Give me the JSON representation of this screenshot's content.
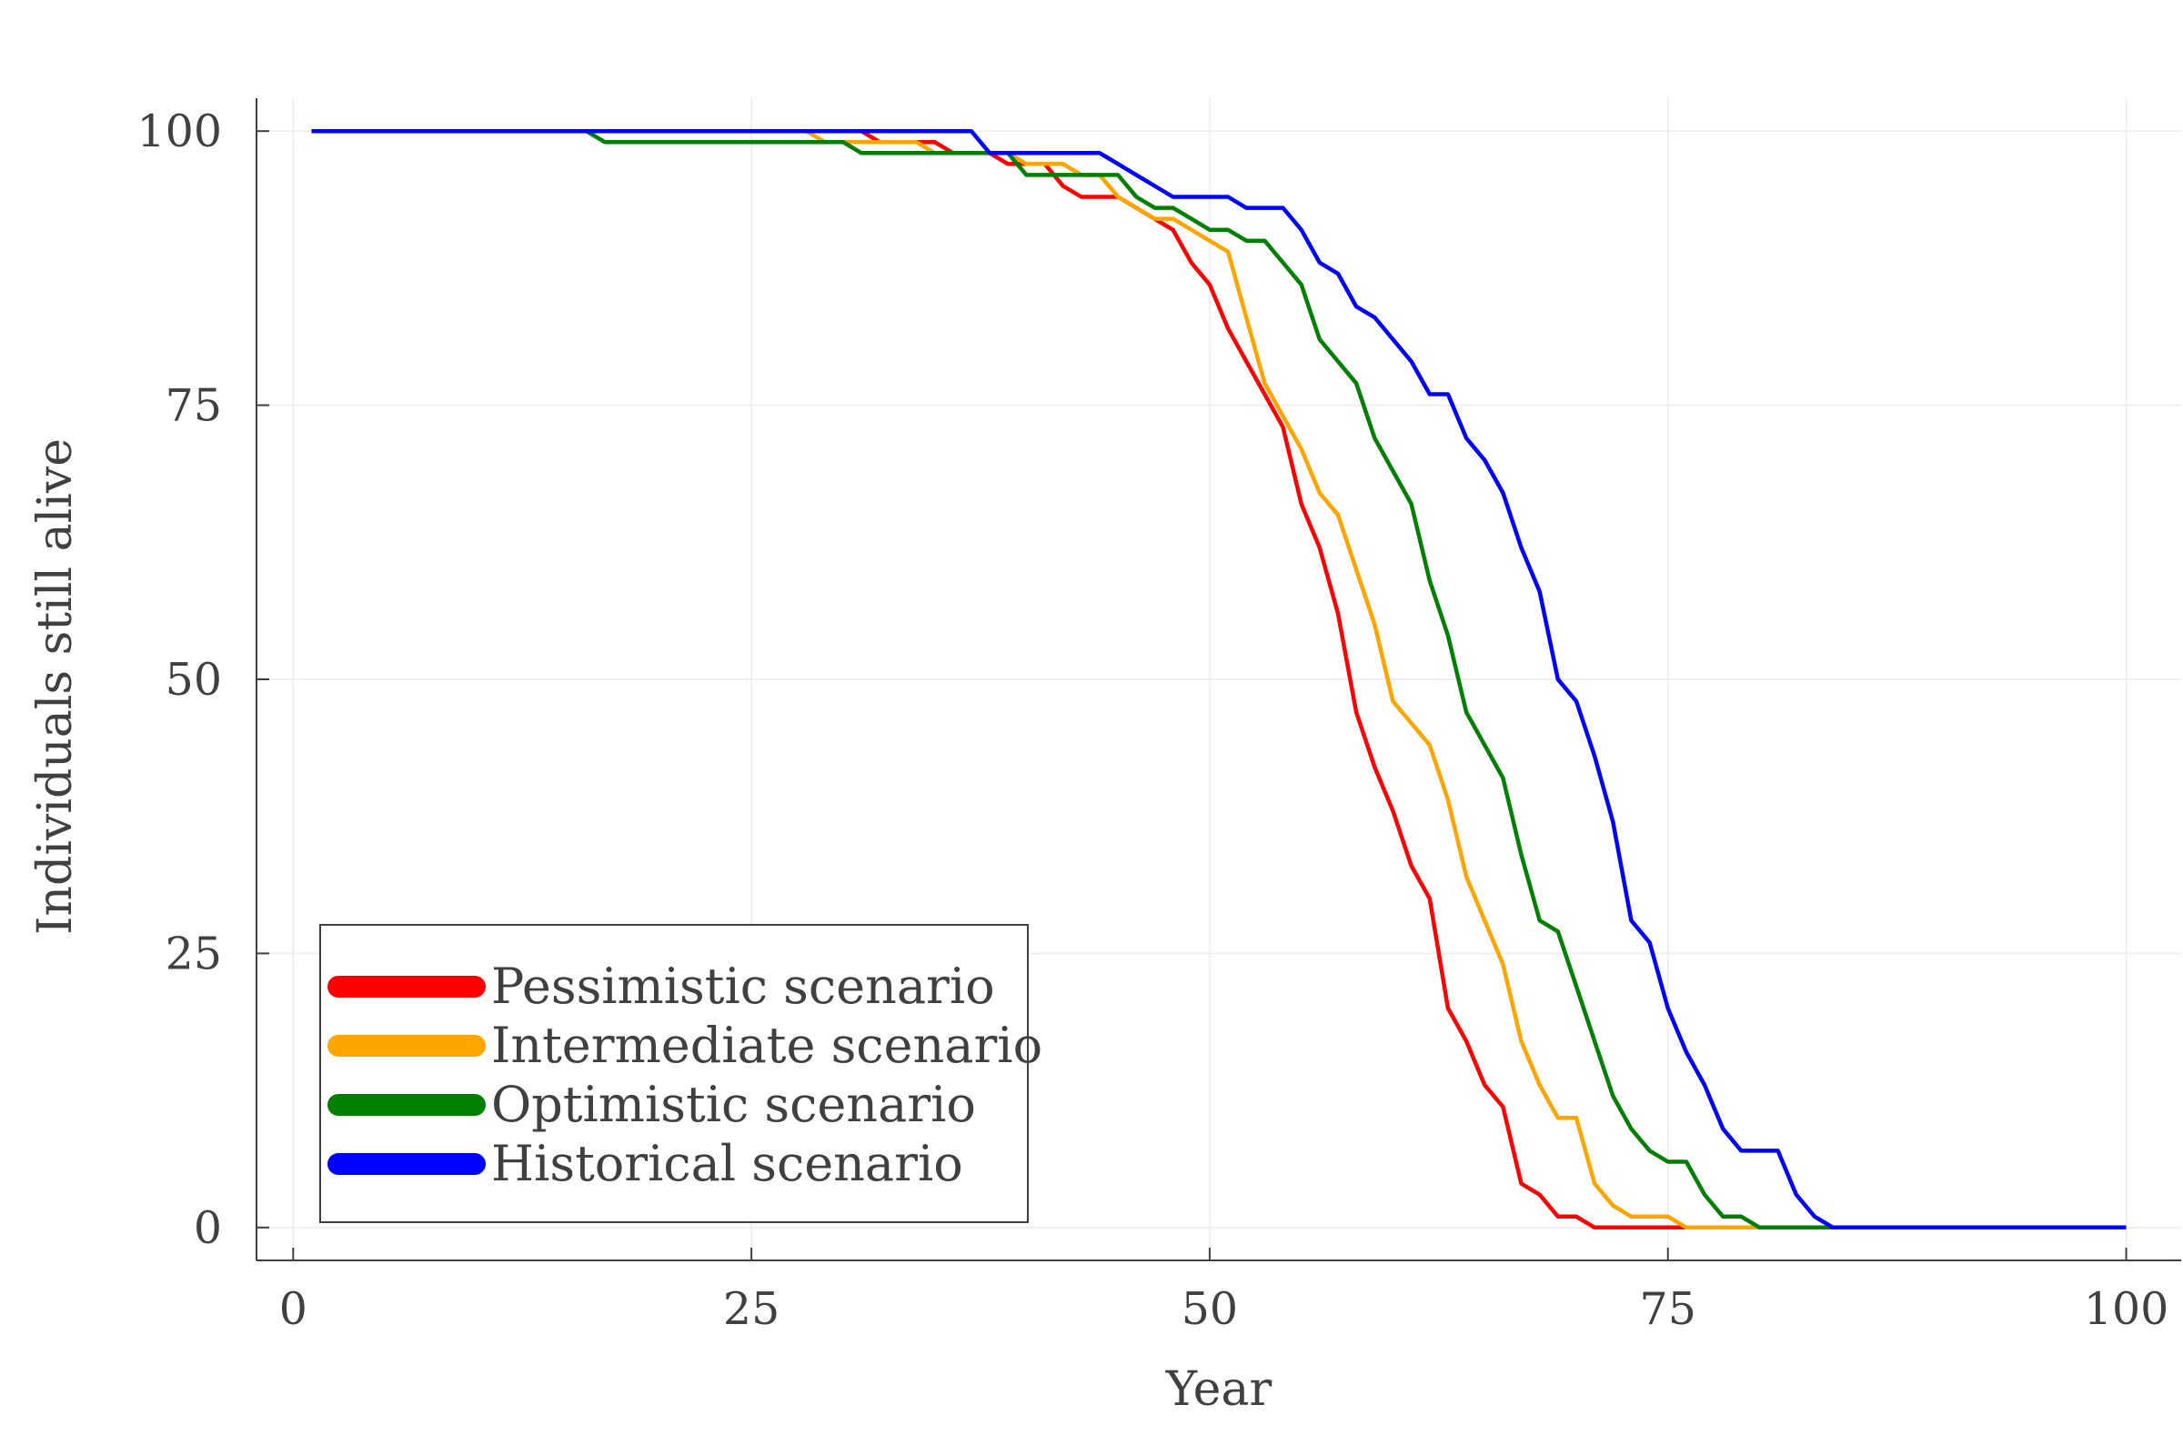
{
  "chart_data": {
    "type": "line",
    "title": "",
    "xlabel": "Year",
    "ylabel": "Individuals still alive",
    "xlim": [
      -2,
      103
    ],
    "ylim": [
      -3,
      103
    ],
    "xticks": [
      0,
      25,
      50,
      75,
      100
    ],
    "yticks": [
      0,
      25,
      50,
      75,
      100
    ],
    "xtick_labels": [
      "0",
      "25",
      "50",
      "75",
      "100"
    ],
    "ytick_labels": [
      "0",
      "25",
      "50",
      "75",
      "100"
    ],
    "grid": true,
    "legend_position": "bottom-left",
    "series": [
      {
        "name": "Pessimistic scenario",
        "color": "#ff0000",
        "points": [
          [
            1,
            100
          ],
          [
            31,
            100
          ],
          [
            32,
            99
          ],
          [
            35,
            99
          ],
          [
            36,
            98
          ],
          [
            38,
            98
          ],
          [
            39,
            97
          ],
          [
            41,
            97
          ],
          [
            42,
            95
          ],
          [
            43,
            94
          ],
          [
            45,
            94
          ],
          [
            46,
            93
          ],
          [
            48,
            91
          ],
          [
            49,
            88
          ],
          [
            50,
            86
          ],
          [
            51,
            82
          ],
          [
            52,
            79
          ],
          [
            53,
            76
          ],
          [
            54,
            73
          ],
          [
            55,
            66
          ],
          [
            56,
            62
          ],
          [
            57,
            56
          ],
          [
            58,
            47
          ],
          [
            59,
            42
          ],
          [
            60,
            38
          ],
          [
            61,
            33
          ],
          [
            62,
            30
          ],
          [
            63,
            20
          ],
          [
            64,
            17
          ],
          [
            65,
            13
          ],
          [
            66,
            11
          ],
          [
            67,
            4
          ],
          [
            68,
            3
          ],
          [
            69,
            1
          ],
          [
            70,
            1
          ],
          [
            71,
            0
          ],
          [
            100,
            0
          ]
        ]
      },
      {
        "name": "Intermediate scenario",
        "color": "#ffa500",
        "points": [
          [
            1,
            100
          ],
          [
            28,
            100
          ],
          [
            29,
            99
          ],
          [
            34,
            99
          ],
          [
            35,
            98
          ],
          [
            39,
            98
          ],
          [
            40,
            97
          ],
          [
            42,
            97
          ],
          [
            43,
            96
          ],
          [
            44,
            96
          ],
          [
            45,
            94
          ],
          [
            47,
            92
          ],
          [
            48,
            92
          ],
          [
            49,
            91
          ],
          [
            50,
            90
          ],
          [
            51,
            89
          ],
          [
            52,
            83
          ],
          [
            53,
            77
          ],
          [
            54,
            74
          ],
          [
            55,
            71
          ],
          [
            56,
            67
          ],
          [
            57,
            65
          ],
          [
            58,
            60
          ],
          [
            59,
            55
          ],
          [
            60,
            48
          ],
          [
            61,
            46
          ],
          [
            62,
            44
          ],
          [
            63,
            39
          ],
          [
            64,
            32
          ],
          [
            65,
            28
          ],
          [
            66,
            24
          ],
          [
            67,
            17
          ],
          [
            68,
            13
          ],
          [
            69,
            10
          ],
          [
            70,
            10
          ],
          [
            71,
            4
          ],
          [
            72,
            2
          ],
          [
            73,
            1
          ],
          [
            75,
            1
          ],
          [
            76,
            0
          ],
          [
            100,
            0
          ]
        ]
      },
      {
        "name": "Optimistic scenario",
        "color": "#008000",
        "points": [
          [
            1,
            100
          ],
          [
            16,
            100
          ],
          [
            17,
            99
          ],
          [
            30,
            99
          ],
          [
            31,
            98
          ],
          [
            39,
            98
          ],
          [
            40,
            96
          ],
          [
            42,
            96
          ],
          [
            43,
            96
          ],
          [
            45,
            96
          ],
          [
            46,
            94
          ],
          [
            47,
            93
          ],
          [
            48,
            93
          ],
          [
            49,
            92
          ],
          [
            50,
            91
          ],
          [
            51,
            91
          ],
          [
            52,
            90
          ],
          [
            53,
            90
          ],
          [
            54,
            88
          ],
          [
            55,
            86
          ],
          [
            56,
            81
          ],
          [
            57,
            79
          ],
          [
            58,
            77
          ],
          [
            59,
            72
          ],
          [
            60,
            69
          ],
          [
            61,
            66
          ],
          [
            62,
            59
          ],
          [
            63,
            54
          ],
          [
            64,
            47
          ],
          [
            65,
            44
          ],
          [
            66,
            41
          ],
          [
            67,
            34
          ],
          [
            68,
            28
          ],
          [
            69,
            27
          ],
          [
            70,
            22
          ],
          [
            71,
            17
          ],
          [
            72,
            12
          ],
          [
            73,
            9
          ],
          [
            74,
            7
          ],
          [
            75,
            6
          ],
          [
            76,
            6
          ],
          [
            77,
            3
          ],
          [
            78,
            1
          ],
          [
            79,
            1
          ],
          [
            80,
            0
          ],
          [
            100,
            0
          ]
        ]
      },
      {
        "name": "Historical scenario",
        "color": "#0000ff",
        "points": [
          [
            1,
            100
          ],
          [
            37,
            100
          ],
          [
            38,
            98
          ],
          [
            44,
            98
          ],
          [
            45,
            97
          ],
          [
            46,
            96
          ],
          [
            47,
            95
          ],
          [
            48,
            94
          ],
          [
            51,
            94
          ],
          [
            52,
            93
          ],
          [
            54,
            93
          ],
          [
            55,
            91
          ],
          [
            56,
            88
          ],
          [
            57,
            87
          ],
          [
            58,
            84
          ],
          [
            59,
            83
          ],
          [
            60,
            81
          ],
          [
            61,
            79
          ],
          [
            62,
            76
          ],
          [
            63,
            76
          ],
          [
            64,
            72
          ],
          [
            65,
            70
          ],
          [
            66,
            67
          ],
          [
            67,
            62
          ],
          [
            68,
            58
          ],
          [
            69,
            50
          ],
          [
            70,
            48
          ],
          [
            71,
            43
          ],
          [
            72,
            37
          ],
          [
            73,
            28
          ],
          [
            74,
            26
          ],
          [
            75,
            20
          ],
          [
            76,
            16
          ],
          [
            77,
            13
          ],
          [
            78,
            9
          ],
          [
            79,
            7
          ],
          [
            81,
            7
          ],
          [
            82,
            3
          ],
          [
            83,
            1
          ],
          [
            84,
            0
          ],
          [
            100,
            0
          ]
        ]
      }
    ]
  }
}
